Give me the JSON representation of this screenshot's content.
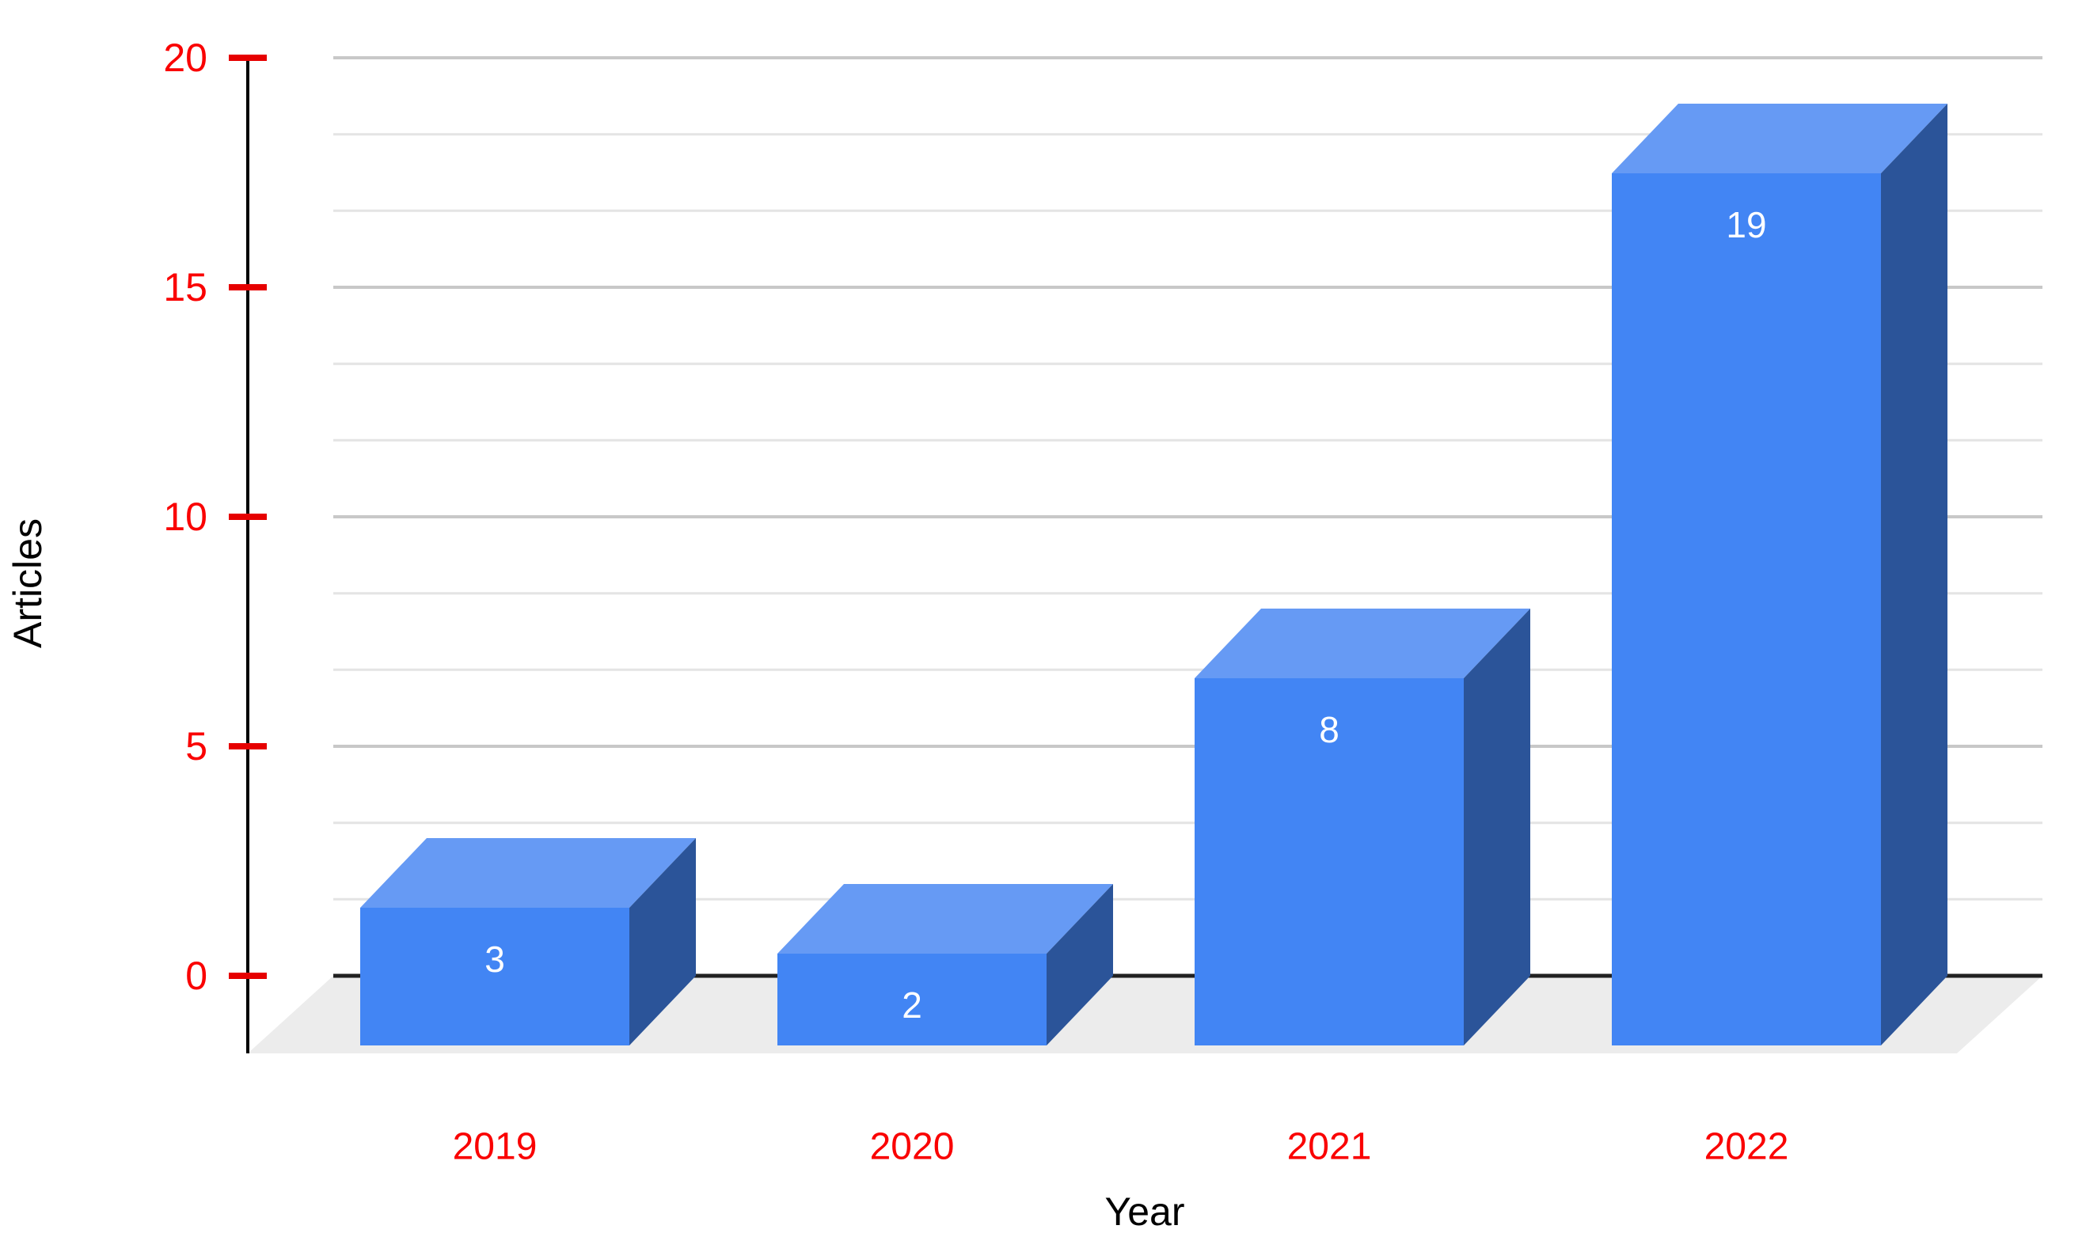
{
  "chart_data": {
    "type": "bar",
    "style": "3d-column",
    "title": "",
    "xlabel": "Year",
    "ylabel": "Articles",
    "categories": [
      "2019",
      "2020",
      "2021",
      "2022"
    ],
    "values": [
      3,
      2,
      8,
      19
    ],
    "bar_labels": [
      "3",
      "2",
      "8",
      "19"
    ],
    "ylim": [
      0,
      20
    ],
    "yticks": [
      0,
      5,
      10,
      15,
      20
    ],
    "ytick_labels": [
      "0",
      "5",
      "10",
      "15",
      "20"
    ],
    "minor_gridlines_per_major": 2,
    "grid": true,
    "legend": "none"
  },
  "colors": {
    "background": "#ffffff",
    "bar_front": "#4285F4",
    "bar_top": "#669AF4",
    "bar_side": "#2B5499",
    "bar_label": "#ffffff",
    "tick_label": "#FA0000",
    "tick_mark": "#E60000",
    "axis_title": "#000000",
    "axis_line": "#000000",
    "zero_baseline": "#212121",
    "grid_major": "#C8C8C8",
    "grid_minor": "#E4E4E4",
    "floor": "#ECECEC"
  }
}
